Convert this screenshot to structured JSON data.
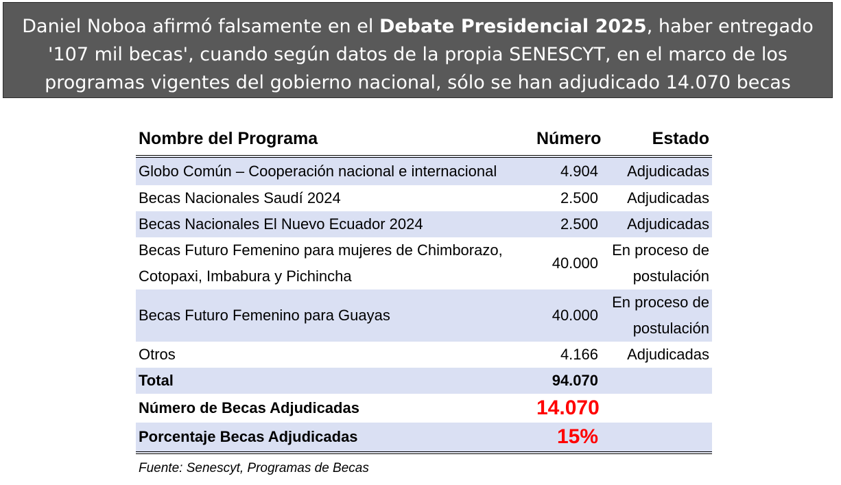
{
  "banner": {
    "text_before": "Daniel Noboa afirmó falsamente en el ",
    "text_bold": "Debate Presidencial 2025",
    "text_after": ", haber entregado '107 mil becas', cuando según datos de la propia SENESCYT, en el marco de los programas vigentes del gobierno nacional, sólo se han adjudicado 14.070 becas"
  },
  "table": {
    "headers": {
      "program": "Nombre del Programa",
      "number": "Número",
      "status": "Estado"
    },
    "rows": [
      {
        "program": "Globo Común – Cooperación nacional e internacional",
        "number": "4.904",
        "status": "Adjudicadas"
      },
      {
        "program": "Becas Nacionales Saudí 2024",
        "number": "2.500",
        "status": "Adjudicadas"
      },
      {
        "program": "Becas Nacionales El Nuevo Ecuador 2024",
        "number": "2.500",
        "status": "Adjudicadas"
      },
      {
        "program_line1": "Becas Futuro Femenino para mujeres de Chimborazo,",
        "program_line2": "Cotopaxi, Imbabura y Pichincha",
        "number": "40.000",
        "status_line1": "En proceso de",
        "status_line2": "postulación"
      },
      {
        "program": "Becas Futuro Femenino para Guayas",
        "number": "40.000",
        "status_line1": "En proceso de",
        "status_line2": "postulación"
      },
      {
        "program": "Otros",
        "number": "4.166",
        "status": "Adjudicadas"
      }
    ],
    "total": {
      "label": "Total",
      "value": "94.070"
    },
    "awarded": {
      "label": "Número de Becas Adjudicadas",
      "value": "14.070"
    },
    "percentage": {
      "label": "Porcentaje Becas Adjudicadas",
      "value": "15%"
    }
  },
  "source": "Fuente: Senescyt, Programas de Becas",
  "colors": {
    "banner_bg": "#595959",
    "row_shade": "#dae0f3",
    "highlight_red": "#ff0000"
  }
}
